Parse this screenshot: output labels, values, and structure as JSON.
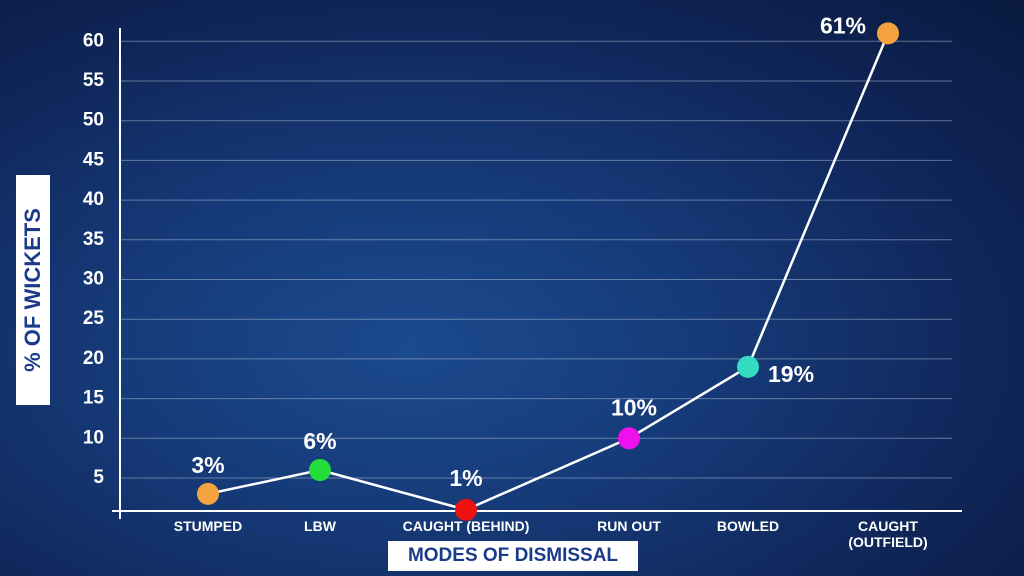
{
  "chart_data": {
    "type": "line",
    "x_label": "MODES OF DISMISSAL",
    "y_label": "% OF WICKETS",
    "categories": [
      "STUMPED",
      "LBW",
      "CAUGHT (BEHIND)",
      "RUN OUT",
      "BOWLED",
      "CAUGHT (OUTFIELD)"
    ],
    "values": [
      3,
      6,
      1,
      10,
      19,
      61
    ],
    "value_labels": [
      "3%",
      "6%",
      "1%",
      "10%",
      "19%",
      "61%"
    ],
    "point_colors": [
      "#f4a340",
      "#22dd3a",
      "#ee1111",
      "#ee11ee",
      "#33dcc0",
      "#f4a340"
    ],
    "line_color": "#ffffff",
    "ylim": [
      0,
      62
    ],
    "yticks": [
      5,
      10,
      15,
      20,
      25,
      30,
      35,
      40,
      45,
      50,
      55,
      60
    ],
    "grid": true
  }
}
